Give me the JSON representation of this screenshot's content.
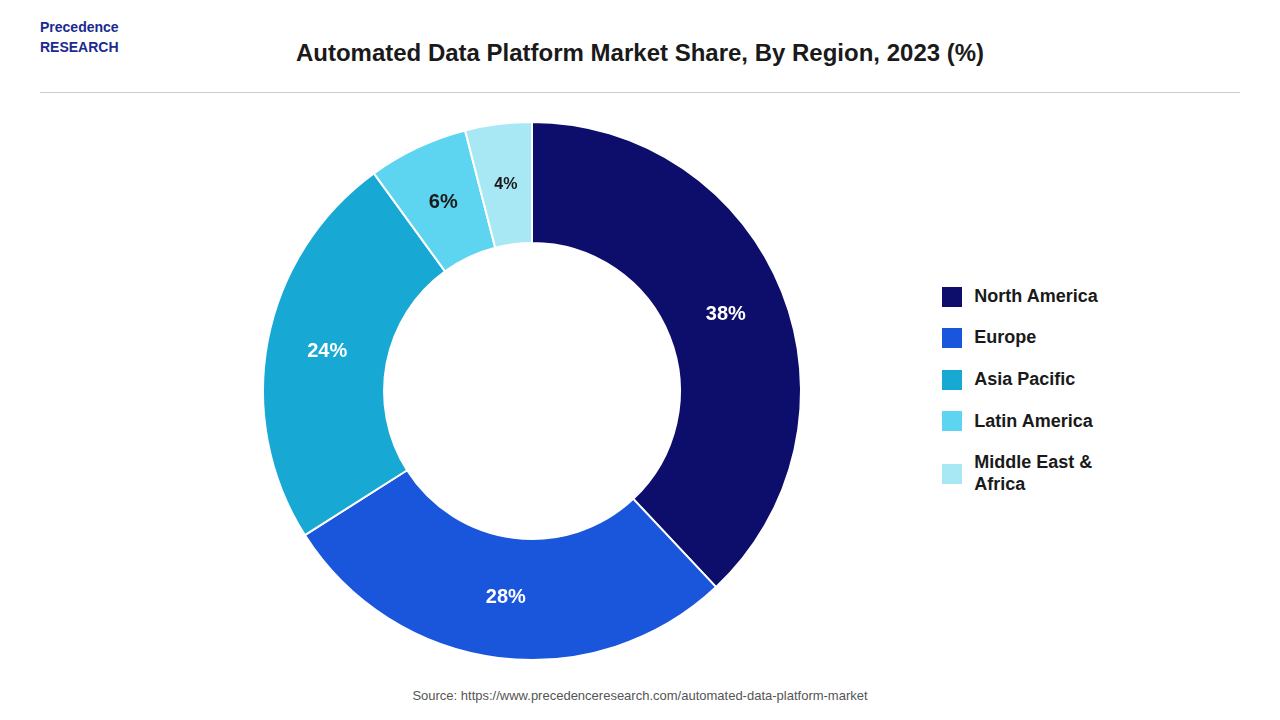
{
  "chart_data": {
    "type": "doughnut",
    "title": "Automated Data Platform Market Share, By Region, 2023 (%)",
    "annotations": [
      "Precedence\nRESEARCH",
      "Source: https://www.precedenceresearch.com/automated-data-platform-market"
    ],
    "categories": [
      "North America",
      "Europe",
      "Asia Pacific",
      "Latin America",
      "Middle East &\nAfrica"
    ],
    "values": [
      38,
      28,
      24,
      6,
      4
    ],
    "value_labels": [
      "38%",
      "28%",
      "24%",
      "6%",
      "4%"
    ],
    "colors": [
      "#0d0d6b",
      "#1a56db",
      "#17a8d4",
      "#5dd4f0",
      "#a8e8f5"
    ],
    "data_labels": true,
    "legend": "right"
  }
}
